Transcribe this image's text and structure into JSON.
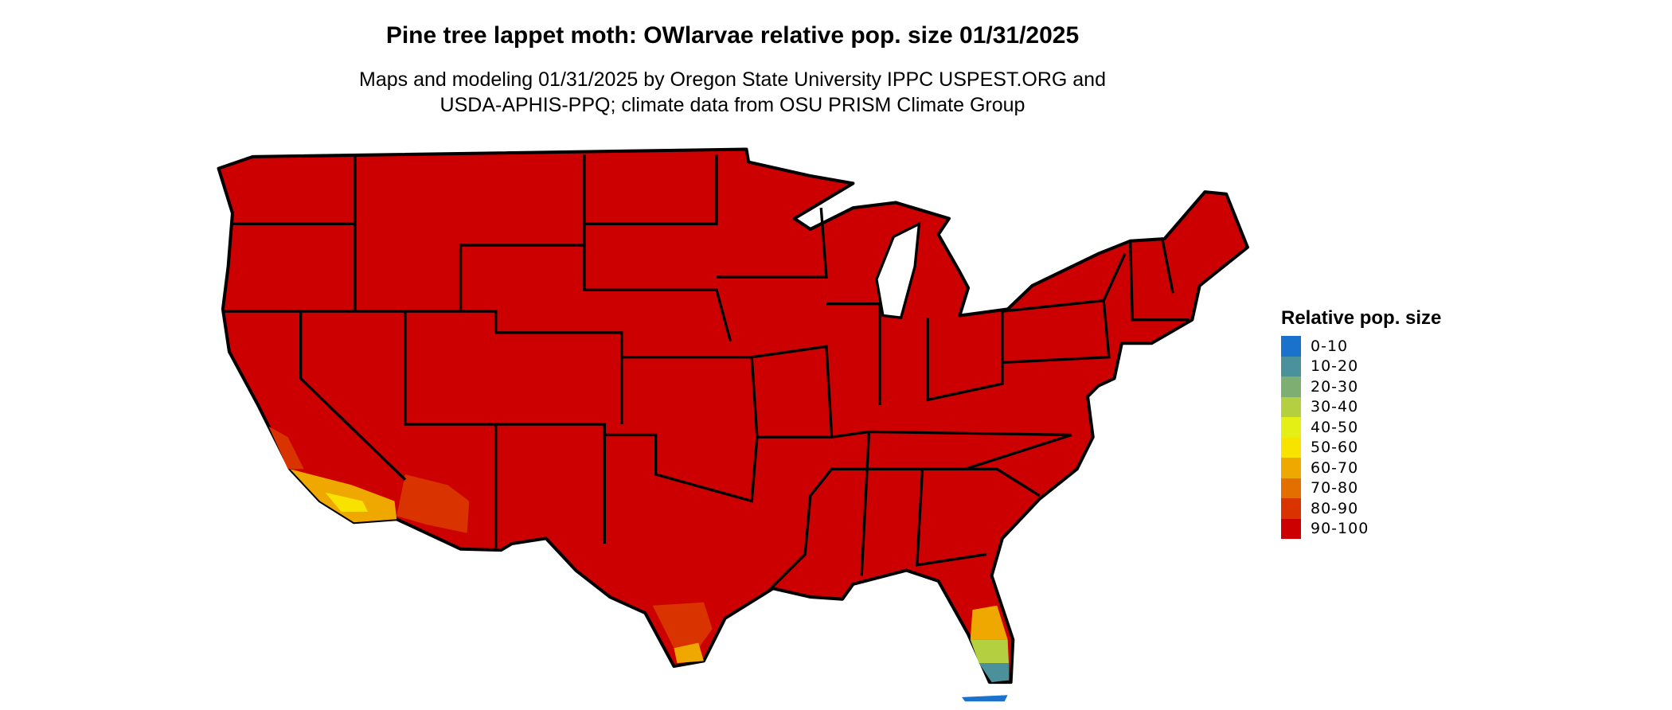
{
  "title": "Pine tree lappet moth: OWlarvae relative pop. size 01/31/2025",
  "subtitle_lines": [
    "Maps and modeling 01/31/2025 by Oregon State University IPPC USPEST.ORG and",
    "USDA-APHIS-PPQ; climate data from OSU PRISM Climate Group"
  ],
  "legend": {
    "title": "Relative pop. size",
    "items": [
      {
        "label": "0-10",
        "color": "#1a72cc"
      },
      {
        "label": "10-20",
        "color": "#4a919b"
      },
      {
        "label": "20-30",
        "color": "#7eae72"
      },
      {
        "label": "30-40",
        "color": "#b4d041"
      },
      {
        "label": "40-50",
        "color": "#e4ef15"
      },
      {
        "label": "50-60",
        "color": "#f8e200"
      },
      {
        "label": "60-70",
        "color": "#efa800"
      },
      {
        "label": "70-80",
        "color": "#e26f00"
      },
      {
        "label": "80-90",
        "color": "#d93400"
      },
      {
        "label": "90-100",
        "color": "#cc0000"
      }
    ]
  },
  "map": {
    "region": "Contiguous United States",
    "dominant_class": "90-100",
    "base_color": "#cc0000",
    "border_color": "#000000"
  }
}
